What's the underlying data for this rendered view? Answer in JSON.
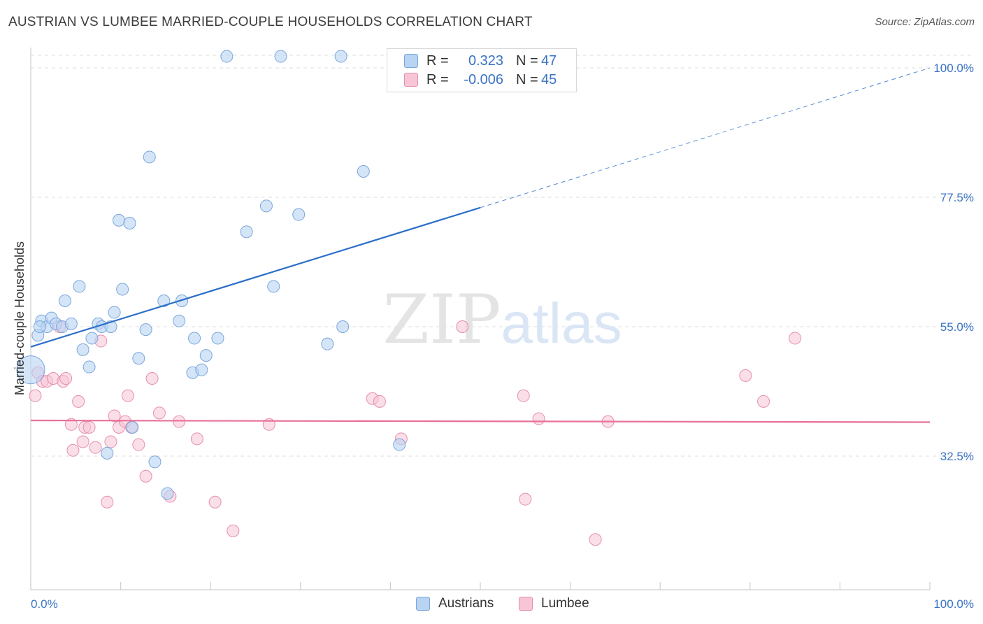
{
  "title": "AUSTRIAN VS LUMBEE MARRIED-COUPLE HOUSEHOLDS CORRELATION CHART",
  "source": "Source: ZipAtlas.com",
  "watermark": {
    "zip": "ZIP",
    "atlas": "atlas"
  },
  "legend": {
    "series1": {
      "r_label": "R =",
      "r_value": "0.323",
      "n_label": "N =",
      "n_value": "47"
    },
    "series2": {
      "r_label": "R =",
      "r_value": "-0.006",
      "n_label": "N =",
      "n_value": "45"
    }
  },
  "colors": {
    "austrians_fill": "#b9d3f3",
    "austrians_stroke": "#7aa6dc",
    "austrians_line": "#2b6fc9",
    "lumbee_fill": "#f8c5d6",
    "lumbee_stroke": "#e58fae",
    "lumbee_line": "#e8709a",
    "axis_label": "#3a74c4",
    "grid": "#dcdcdc"
  },
  "chart_data": {
    "type": "scatter",
    "title": "AUSTRIAN VS LUMBEE MARRIED-COUPLE HOUSEHOLDS CORRELATION CHART",
    "xlabel": "",
    "ylabel": "Married-couple Households",
    "xlim": [
      0,
      100
    ],
    "ylim": [
      10,
      102.5
    ],
    "x_tick_labels": {
      "left": "0.0%",
      "right": "100.0%"
    },
    "y_ticks": [
      {
        "value": 32.5,
        "label": "32.5%"
      },
      {
        "value": 55.0,
        "label": "55.0%"
      },
      {
        "value": 77.5,
        "label": "77.5%"
      },
      {
        "value": 100.0,
        "label": "100.0%"
      }
    ],
    "series": [
      {
        "name": "Austrians",
        "points": [
          [
            0.3,
            47.5
          ],
          [
            0.8,
            53.5
          ],
          [
            1.2,
            56.0
          ],
          [
            1.8,
            55.0
          ],
          [
            2.3,
            56.5
          ],
          [
            2.8,
            55.5
          ],
          [
            3.5,
            55.0
          ],
          [
            3.8,
            59.5
          ],
          [
            4.5,
            55.5
          ],
          [
            5.4,
            62.0
          ],
          [
            5.8,
            51.0
          ],
          [
            6.5,
            48.0
          ],
          [
            6.8,
            53.0
          ],
          [
            7.5,
            55.5
          ],
          [
            7.9,
            55.0
          ],
          [
            8.5,
            33.0
          ],
          [
            8.9,
            55.0
          ],
          [
            9.3,
            57.5
          ],
          [
            9.8,
            73.5
          ],
          [
            10.2,
            61.5
          ],
          [
            11.0,
            73.0
          ],
          [
            11.3,
            37.5
          ],
          [
            12.0,
            49.5
          ],
          [
            12.8,
            54.5
          ],
          [
            13.2,
            84.5
          ],
          [
            13.8,
            31.5
          ],
          [
            14.8,
            59.5
          ],
          [
            15.2,
            26.0
          ],
          [
            16.5,
            56.0
          ],
          [
            16.8,
            59.5
          ],
          [
            18.0,
            47.0
          ],
          [
            18.2,
            53.0
          ],
          [
            19.0,
            47.5
          ],
          [
            19.5,
            50.0
          ],
          [
            20.8,
            53.0
          ],
          [
            21.8,
            102.0
          ],
          [
            24.0,
            71.5
          ],
          [
            26.2,
            76.0
          ],
          [
            27.0,
            62.0
          ],
          [
            27.8,
            102.0
          ],
          [
            29.8,
            74.5
          ],
          [
            33.0,
            52.0
          ],
          [
            34.5,
            102.0
          ],
          [
            34.7,
            55.0
          ],
          [
            37.0,
            82.0
          ],
          [
            41.0,
            34.5
          ],
          [
            1.0,
            55.0
          ]
        ]
      },
      {
        "name": "Lumbee",
        "points": [
          [
            0.5,
            43.0
          ],
          [
            0.8,
            47.0
          ],
          [
            1.3,
            45.5
          ],
          [
            1.8,
            45.5
          ],
          [
            2.5,
            46.0
          ],
          [
            3.2,
            55.0
          ],
          [
            3.6,
            45.5
          ],
          [
            3.9,
            46.0
          ],
          [
            4.5,
            38.0
          ],
          [
            4.7,
            33.5
          ],
          [
            5.3,
            42.0
          ],
          [
            5.8,
            35.0
          ],
          [
            6.0,
            37.5
          ],
          [
            6.5,
            37.5
          ],
          [
            7.2,
            34.0
          ],
          [
            7.8,
            52.5
          ],
          [
            8.5,
            24.5
          ],
          [
            8.9,
            35.0
          ],
          [
            9.3,
            39.5
          ],
          [
            9.8,
            37.5
          ],
          [
            10.5,
            38.5
          ],
          [
            10.8,
            43.0
          ],
          [
            11.2,
            37.5
          ],
          [
            12.0,
            34.5
          ],
          [
            12.8,
            29.0
          ],
          [
            13.5,
            46.0
          ],
          [
            14.3,
            40.0
          ],
          [
            15.5,
            25.5
          ],
          [
            16.5,
            38.5
          ],
          [
            18.5,
            35.5
          ],
          [
            20.5,
            24.5
          ],
          [
            22.5,
            19.5
          ],
          [
            26.5,
            38.0
          ],
          [
            38.0,
            42.5
          ],
          [
            38.8,
            42.0
          ],
          [
            41.2,
            35.5
          ],
          [
            48.0,
            55.0
          ],
          [
            54.8,
            43.0
          ],
          [
            55.0,
            25.0
          ],
          [
            56.5,
            39.0
          ],
          [
            62.8,
            18.0
          ],
          [
            64.2,
            38.5
          ],
          [
            79.5,
            46.5
          ],
          [
            81.5,
            42.0
          ],
          [
            85.0,
            53.0
          ]
        ]
      }
    ],
    "trendlines": [
      {
        "series": "Austrians",
        "x_start": 0,
        "y_start": 51.5,
        "x_solid_end": 50,
        "y_solid_end": 75.7,
        "x_end": 100,
        "y_end": 100.0
      },
      {
        "series": "Lumbee",
        "x_start": 0,
        "y_start": 38.7,
        "x_end": 100,
        "y_end": 38.4
      }
    ]
  }
}
